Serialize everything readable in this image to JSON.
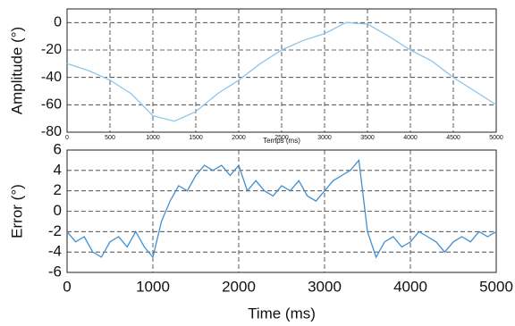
{
  "chart_data": [
    {
      "type": "line",
      "ylabel": "Amplitude (°)",
      "xlabel": "Temps (ms)",
      "color": "#8ec5ea",
      "x": [
        0,
        250,
        500,
        750,
        1000,
        1250,
        1500,
        1750,
        2000,
        2250,
        2500,
        2750,
        3000,
        3250,
        3500,
        3750,
        4000,
        4250,
        4500,
        4750,
        5000
      ],
      "values": [
        -30,
        -35,
        -42,
        -52,
        -68,
        -72,
        -65,
        -52,
        -42,
        -30,
        -20,
        -13,
        -8,
        0,
        -1,
        -10,
        -20,
        -28,
        -40,
        -50,
        -60
      ],
      "xlim": [
        0,
        5000
      ],
      "xticks": [
        0,
        500,
        1000,
        1500,
        2000,
        2500,
        3000,
        3500,
        4000,
        4500,
        5000
      ],
      "ylim": [
        -80,
        10
      ],
      "yticks": [
        -80,
        -60,
        -40,
        -20,
        0
      ],
      "grid": true
    },
    {
      "type": "line",
      "ylabel": "Error (°)",
      "xlabel": "Time (ms)",
      "color": "#3f8fd2",
      "x": [
        0,
        100,
        200,
        300,
        400,
        500,
        600,
        700,
        800,
        900,
        1000,
        1100,
        1200,
        1300,
        1400,
        1500,
        1600,
        1700,
        1800,
        1900,
        2000,
        2100,
        2200,
        2300,
        2400,
        2500,
        2600,
        2700,
        2800,
        2900,
        3000,
        3100,
        3200,
        3300,
        3400,
        3500,
        3600,
        3700,
        3800,
        3900,
        4000,
        4100,
        4200,
        4300,
        4400,
        4500,
        4600,
        4700,
        4800,
        4900,
        5000
      ],
      "values": [
        -2,
        -3,
        -2.5,
        -4,
        -4.5,
        -3,
        -2.5,
        -3.5,
        -2,
        -3.5,
        -4.5,
        -1,
        1,
        2.5,
        2,
        3.5,
        4.5,
        4,
        4.5,
        3.5,
        4.5,
        2,
        3,
        2,
        1.5,
        2.5,
        2,
        3,
        1.5,
        1,
        2,
        3,
        3.5,
        4,
        5,
        -2,
        -4.5,
        -3,
        -2.5,
        -3.5,
        -3,
        -2,
        -2.5,
        -3,
        -4,
        -3,
        -2.5,
        -3,
        -2,
        -2.5,
        -2
      ],
      "xlim": [
        0,
        5000
      ],
      "xticks": [
        0,
        1000,
        2000,
        3000,
        4000,
        5000
      ],
      "ylim": [
        -6,
        6
      ],
      "yticks": [
        -6,
        -4,
        -2,
        0,
        2,
        4,
        6
      ],
      "grid": true
    }
  ]
}
